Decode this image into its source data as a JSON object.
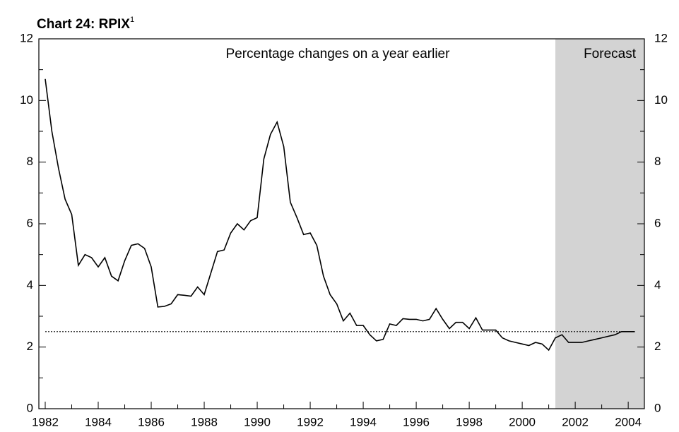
{
  "chart_data": {
    "type": "line",
    "title": "Chart 24: RPIX",
    "title_footnote": "1",
    "subtitle": "Percentage changes on a year earlier",
    "forecast_label": "Forecast",
    "forecast_start": 2001.25,
    "reference_line": 2.5,
    "xlim": [
      1981.76,
      2004.61
    ],
    "xticks": [
      1982,
      1984,
      1986,
      1988,
      1990,
      1992,
      1994,
      1996,
      1998,
      2000,
      2002,
      2004
    ],
    "xminor_ticks": [
      1983,
      1985,
      1987,
      1989,
      1991,
      1993,
      1995,
      1997,
      1999,
      2001,
      2003
    ],
    "ylim": [
      0,
      12
    ],
    "yticks": [
      0,
      2,
      4,
      6,
      8,
      10,
      12
    ],
    "yminor_ticks": [
      1,
      3,
      5,
      7,
      9,
      11
    ],
    "x": [
      1982,
      1982.25,
      1982.5,
      1982.75,
      1983,
      1983.25,
      1983.5,
      1983.75,
      1984,
      1984.25,
      1984.5,
      1984.75,
      1985,
      1985.25,
      1985.5,
      1985.75,
      1986,
      1986.25,
      1986.5,
      1986.75,
      1987,
      1987.25,
      1987.5,
      1987.75,
      1988,
      1988.25,
      1988.5,
      1988.75,
      1989,
      1989.25,
      1989.5,
      1989.75,
      1990,
      1990.25,
      1990.5,
      1990.75,
      1991,
      1991.25,
      1991.5,
      1991.75,
      1992,
      1992.25,
      1992.5,
      1992.75,
      1993,
      1993.25,
      1993.5,
      1993.75,
      1994,
      1994.25,
      1994.5,
      1994.75,
      1995,
      1995.25,
      1995.5,
      1995.75,
      1996,
      1996.25,
      1996.5,
      1996.75,
      1997,
      1997.25,
      1997.5,
      1997.75,
      1998,
      1998.25,
      1998.5,
      1998.75,
      1999,
      1999.25,
      1999.5,
      1999.75,
      2000,
      2000.25,
      2000.5,
      2000.75,
      2001,
      2001.25,
      2001.5,
      2001.75,
      2002,
      2002.25,
      2002.5,
      2002.75,
      2003,
      2003.25,
      2003.5,
      2003.75,
      2004,
      2004.25
    ],
    "series": [
      {
        "name": "RPIX",
        "color": "#000000",
        "values": [
          10.7,
          9.0,
          7.8,
          6.8,
          6.3,
          4.65,
          5.0,
          4.9,
          4.6,
          4.9,
          4.3,
          4.15,
          4.8,
          5.3,
          5.35,
          5.2,
          4.6,
          3.3,
          3.32,
          3.4,
          3.7,
          3.68,
          3.65,
          3.95,
          3.7,
          4.4,
          5.1,
          5.15,
          5.7,
          6.0,
          5.8,
          6.1,
          6.2,
          8.1,
          8.9,
          9.3,
          8.5,
          6.7,
          6.2,
          5.65,
          5.7,
          5.3,
          4.3,
          3.7,
          3.4,
          2.85,
          3.1,
          2.7,
          2.7,
          2.4,
          2.2,
          2.25,
          2.75,
          2.7,
          2.92,
          2.9,
          2.9,
          2.85,
          2.9,
          3.25,
          2.9,
          2.6,
          2.8,
          2.8,
          2.6,
          2.95,
          2.55,
          2.55,
          2.55,
          2.3,
          2.2,
          2.15,
          2.1,
          2.05,
          2.15,
          2.1,
          1.9,
          2.3,
          2.4,
          2.15,
          2.15,
          2.15,
          2.2,
          2.25,
          2.3,
          2.35,
          2.4,
          2.5,
          2.5,
          2.5
        ]
      }
    ]
  }
}
